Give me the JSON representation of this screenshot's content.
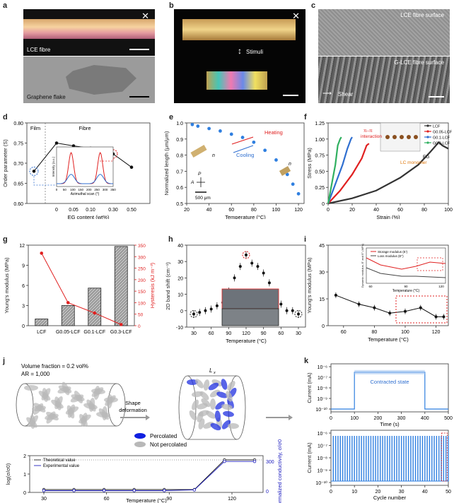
{
  "panels": {
    "a": {
      "label": "a",
      "top_caption": "LCE fibre",
      "bottom_caption": "Graphene flake"
    },
    "b": {
      "label": "b",
      "stimuli": "Stimuli"
    },
    "c": {
      "label": "c",
      "top_caption": "LCE fibre surface",
      "bottom_caption": "G-LCE fibre surface",
      "shear": "Shear"
    },
    "d": {
      "label": "d"
    },
    "e": {
      "label": "e"
    },
    "f": {
      "label": "f"
    },
    "g": {
      "label": "g"
    },
    "h": {
      "label": "h"
    },
    "i": {
      "label": "i"
    },
    "j": {
      "label": "j",
      "vol_fraction": "Volume fraction = 0.2 vol%",
      "ar": "AR = 1,000",
      "shape_def": "Shape\ndeformation",
      "lx": "L",
      "lx_sub": "x",
      "percolated": "Percolated",
      "not_percolated": "Not percolated"
    },
    "k": {
      "label": "k",
      "contracted": "Contracted state"
    }
  },
  "chart_data": [
    {
      "id": "d",
      "type": "line",
      "xlabel": "EG content (wt%)",
      "ylabel": "Order parameter (S)",
      "region_labels": [
        "Film",
        "Fibre"
      ],
      "x": [
        "Film",
        0,
        0.05,
        0.1,
        0.3,
        0.5
      ],
      "xticks": [
        "0",
        "0.05",
        "0.10",
        "0.30",
        "0.50"
      ],
      "values": [
        0.68,
        0.75,
        0.743,
        0.737,
        0.723,
        0.69
      ],
      "ylim": [
        0.6,
        0.8
      ],
      "yticks": [
        "0.60",
        "0.65",
        "0.70",
        "0.75",
        "0.80"
      ],
      "inset": {
        "xlabel": "Azimuthal scan (°)",
        "ylabel": "Intensity (a.u.)",
        "xticks": [
          "0",
          "50",
          "100",
          "150",
          "200",
          "250",
          "300",
          "350"
        ]
      }
    },
    {
      "id": "e",
      "type": "scatter",
      "xlabel": "Temperature (°C)",
      "ylabel": "Normalized length (μm/μm)",
      "x": [
        25,
        30,
        40,
        50,
        60,
        70,
        80,
        90,
        100,
        110,
        115,
        120
      ],
      "values": [
        0.99,
        0.98,
        0.965,
        0.95,
        0.93,
        0.91,
        0.88,
        0.83,
        0.77,
        0.68,
        0.62,
        0.56
      ],
      "xlim": [
        20,
        125
      ],
      "ylim": [
        0.5,
        1.0
      ],
      "xticks": [
        "20",
        "40",
        "60",
        "80",
        "100",
        "120"
      ],
      "yticks": [
        "0.5",
        "0.6",
        "0.7",
        "0.8",
        "0.9",
        "1.0"
      ],
      "annotations": [
        "Heating",
        "Cooling",
        "n",
        "n",
        "P",
        "A",
        "500 μm"
      ]
    },
    {
      "id": "f",
      "type": "line",
      "xlabel": "Strain (%)",
      "ylabel": "Stress (MPa)",
      "xlim": [
        0,
        100
      ],
      "ylim": [
        0,
        1.25
      ],
      "xticks": [
        "0",
        "20",
        "40",
        "60",
        "80",
        "100"
      ],
      "yticks": [
        "0",
        "0.25",
        "0.50",
        "0.75",
        "1.00",
        "1.25"
      ],
      "series": [
        {
          "name": "LCF",
          "color": "#333333",
          "points": [
            [
              0,
              0
            ],
            [
              20,
              0.08
            ],
            [
              40,
              0.2
            ],
            [
              60,
              0.4
            ],
            [
              75,
              0.6
            ],
            [
              85,
              0.8
            ],
            [
              92,
              0.95
            ],
            [
              95,
              0.9
            ],
            [
              100,
              0.85
            ]
          ]
        },
        {
          "name": "G0.05-LCF",
          "color": "#e02020",
          "points": [
            [
              0,
              0
            ],
            [
              10,
              0.2
            ],
            [
              20,
              0.45
            ],
            [
              28,
              0.7
            ],
            [
              32,
              0.9
            ],
            [
              34,
              0.93
            ]
          ]
        },
        {
          "name": "G0.1-LCF",
          "color": "#2f6fd0",
          "points": [
            [
              0,
              0
            ],
            [
              6,
              0.3
            ],
            [
              12,
              0.6
            ],
            [
              16,
              0.85
            ],
            [
              19,
              1.0
            ],
            [
              20,
              1.03
            ]
          ]
        },
        {
          "name": "G0.3-LCF",
          "color": "#30b060",
          "points": [
            [
              0,
              0
            ],
            [
              3,
              0.3
            ],
            [
              6,
              0.6
            ],
            [
              8,
              0.9
            ],
            [
              10,
              1.0
            ],
            [
              11,
              1.03
            ]
          ]
        }
      ],
      "legend": [
        "LCF",
        "G0.05-LCF",
        "G0.1-LCF",
        "G0.3-LCF"
      ],
      "annotations": [
        "π–π",
        "interaction",
        "EG",
        "LC monomer"
      ]
    },
    {
      "id": "g",
      "type": "bar",
      "categories": [
        "LCF",
        "G0.05-LCF",
        "G0.1-LCF",
        "G0.3-LCF"
      ],
      "ylabel": "Young's modulus (MPa)",
      "y2label": "Hysteresis (kJ m⁻³)",
      "values": [
        1.0,
        3.0,
        5.6,
        11.8
      ],
      "hysteresis": [
        315,
        100,
        55,
        5
      ],
      "ylim": [
        0,
        12
      ],
      "y2lim": [
        0,
        350
      ],
      "yticks": [
        "0",
        "3",
        "6",
        "9",
        "12"
      ],
      "y2ticks": [
        "0",
        "50",
        "100",
        "150",
        "200",
        "250",
        "300",
        "350"
      ]
    },
    {
      "id": "h",
      "type": "scatter",
      "xlabel": "Temperature (°C)",
      "ylabel": "2D band shift (cm⁻¹)",
      "xticks": [
        "30",
        "60",
        "90",
        "120",
        "90",
        "60",
        "30"
      ],
      "x": [
        30,
        40,
        50,
        60,
        70,
        80,
        90,
        100,
        110,
        120,
        110,
        100,
        90,
        80,
        70,
        60,
        50,
        40,
        30
      ],
      "values": [
        -2,
        -1,
        0,
        1,
        3,
        5,
        12,
        20,
        27,
        34,
        29,
        27,
        23,
        17,
        10,
        4,
        0,
        0,
        -2
      ],
      "ylim": [
        -10,
        40
      ],
      "yticks": [
        "-10",
        "0",
        "10",
        "20",
        "30",
        "40"
      ]
    },
    {
      "id": "i",
      "type": "line",
      "xlabel": "Temperature (°C)",
      "ylabel": "Young's modulus (MPa)",
      "x": [
        55,
        70,
        80,
        90,
        100,
        110,
        120,
        125
      ],
      "values": [
        17,
        12,
        10,
        7,
        8,
        10,
        5,
        5
      ],
      "ylim": [
        0,
        45
      ],
      "yticks": [
        "0",
        "15",
        "30",
        "45"
      ],
      "xticks": [
        "60",
        "80",
        "100",
        "120"
      ],
      "inset": {
        "xlabel": "Temperature (°C)",
        "ylabel": "Dynamic modulus, E′ and E″ (MPa)",
        "legend": [
          "Storage modulus (E′)",
          "Loss modulus (E″)"
        ],
        "xticks": [
          "60",
          "90",
          "120"
        ]
      }
    },
    {
      "id": "j",
      "type": "line",
      "xlabel": "Temperature (°C)",
      "ylabel": "log(σ/σ0)",
      "y2label": "Normalized conductivity, σ/σ0",
      "x": [
        30,
        45,
        60,
        75,
        90,
        105,
        120,
        135
      ],
      "series": [
        {
          "name": "Theoretical value",
          "values": [
            0,
            0,
            0,
            0,
            0,
            0,
            2,
            2
          ]
        },
        {
          "name": "Experimental value",
          "values": [
            0,
            0,
            0,
            0,
            0,
            0.05,
            1.9,
            1.9
          ]
        }
      ],
      "xticks": [
        "30",
        "60",
        "90",
        "120"
      ],
      "yticks": [
        "0",
        "1",
        "2"
      ],
      "y2ticks": [
        "0",
        "300"
      ]
    },
    {
      "id": "k-top",
      "type": "line",
      "xlabel": "Time (s)",
      "ylabel": "Current (mA)",
      "xticks": [
        "0",
        "100",
        "200",
        "300",
        "400",
        "500"
      ],
      "yticks": [
        "10⁻¹⁰",
        "10⁻⁹",
        "10⁻⁸",
        "10⁻⁷",
        "10⁻⁶"
      ],
      "segments": [
        [
          0,
          1e-10
        ],
        [
          100,
          1e-10
        ],
        [
          100,
          3e-07
        ],
        [
          400,
          3e-07
        ],
        [
          400,
          1e-10
        ],
        [
          500,
          1e-10
        ]
      ]
    },
    {
      "id": "k-bottom",
      "type": "bar",
      "xlabel": "Cycle number",
      "ylabel": "Current (mA)",
      "xticks": [
        "0",
        "10",
        "20",
        "30",
        "40",
        "50"
      ],
      "yticks": [
        "10⁻¹⁰",
        "10⁻⁹",
        "10⁻⁸",
        "10⁻⁷",
        "10⁻⁶"
      ],
      "cycles": 50
    }
  ]
}
